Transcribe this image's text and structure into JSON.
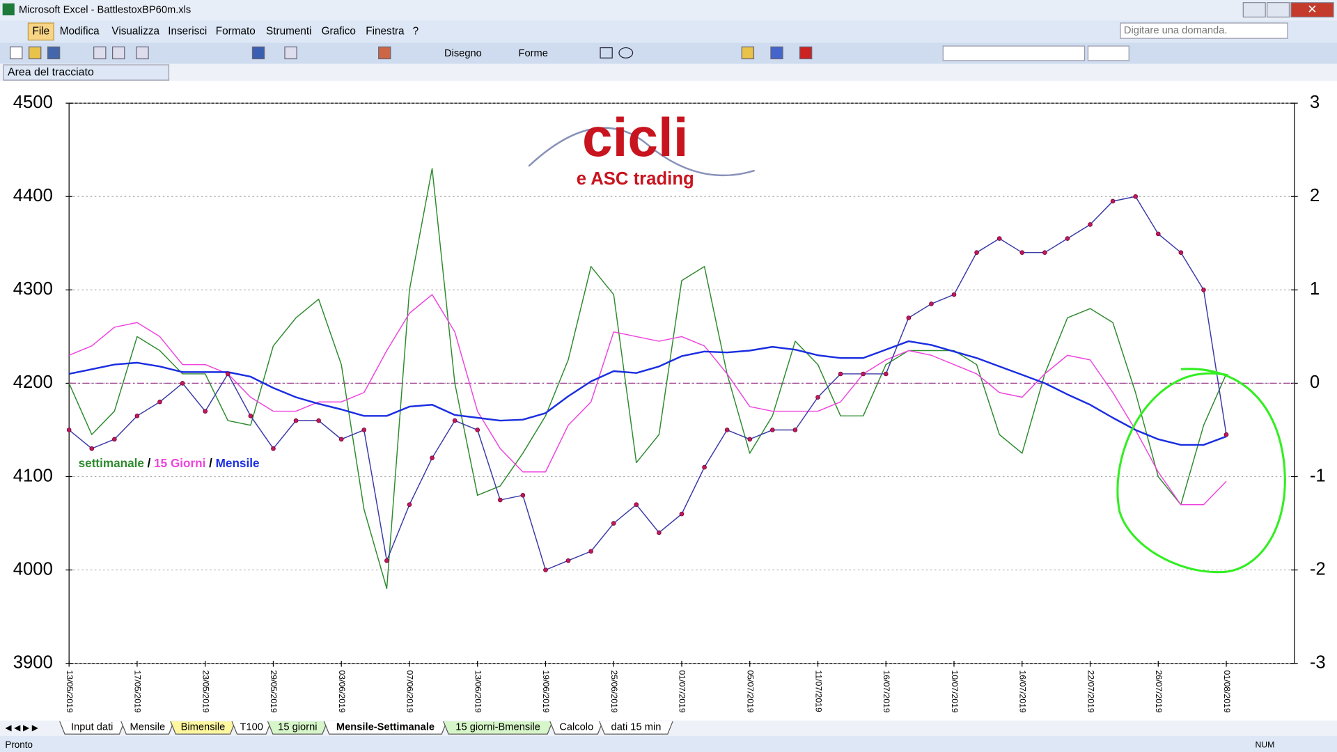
{
  "ui": {
    "window_title": "Microsoft Excel - BattlestoxBP60m.xls",
    "menu": [
      "File",
      "Modifica",
      "Visualizza",
      "Inserisci",
      "Formato",
      "Strumenti",
      "Grafico",
      "Finestra",
      "?"
    ],
    "ask_box": "Digitare una domanda.",
    "toolbar": [
      "Disegno",
      "Forme"
    ],
    "name_box": "Area del tracciato",
    "sheet_tabs": [
      "Input dati",
      "Mensile",
      "Bimensile",
      "T100",
      "15 giorni",
      "Mensile-Settimanale",
      "15 giorni-Bmensile",
      "Calcolo",
      "dati 15 min"
    ],
    "status": "Pronto",
    "status_num": "NUM"
  },
  "logo": {
    "title": "cicli",
    "subtitle": "e ASC trading"
  },
  "chart_data": {
    "type": "line",
    "categories": [
      "13/05/2019",
      null,
      null,
      "17/05/2019",
      null,
      null,
      "23/05/2019",
      null,
      null,
      "29/05/2019",
      null,
      null,
      "03/06/2019",
      null,
      null,
      "07/06/2019",
      null,
      null,
      "13/06/2019",
      null,
      null,
      "19/06/2019",
      null,
      null,
      "25/06/2019",
      null,
      null,
      "01/07/2019",
      null,
      null,
      "05/07/2019",
      null,
      null,
      "11/07/2019",
      null,
      null,
      "16/07/2019",
      null,
      null,
      "10/07/2019",
      null,
      null,
      "16/07/2019",
      null,
      null,
      "22/07/2019",
      null,
      null,
      "26/07/2019",
      null,
      null,
      "01/08/2019",
      null,
      null,
      null
    ],
    "ylim": [
      3900,
      4500
    ],
    "yticks": [
      3900,
      4000,
      4100,
      4200,
      4300,
      4400,
      4500
    ],
    "y2lim": [
      -3,
      3
    ],
    "y2ticks": [
      -3,
      -2,
      -1,
      0,
      1,
      2,
      3
    ],
    "zero_line_color": "#a04090",
    "legend_separator": " / ",
    "price": {
      "color": "#c2185b",
      "line_color": "#3a3aa8",
      "values": [
        4150,
        4130,
        4140,
        4165,
        4180,
        4200,
        4170,
        4210,
        4165,
        4130,
        4160,
        4160,
        4140,
        4150,
        4010,
        4070,
        4120,
        4160,
        4150,
        4075,
        4080,
        4000,
        4010,
        4020,
        4050,
        4070,
        4040,
        4060,
        4110,
        4150,
        4140,
        4150,
        4150,
        4185,
        4210,
        4210,
        4210,
        4270,
        4285,
        4295,
        4340,
        4355,
        4340,
        4340,
        4355,
        4370,
        4395,
        4400,
        4360,
        4340,
        4300,
        4145,
        null,
        null,
        null
      ]
    },
    "series": [
      {
        "name": "settimanale",
        "color": "#2e8b2e",
        "axis": "y2",
        "values": [
          0,
          -0.55,
          -0.3,
          0.5,
          0.35,
          0.1,
          0.1,
          -0.4,
          -0.45,
          0.4,
          0.7,
          0.9,
          0.2,
          -1.35,
          -2.2,
          1.0,
          2.3,
          0,
          -1.2,
          -1.1,
          -0.75,
          -0.35,
          0.25,
          1.25,
          0.95,
          -0.85,
          -0.55,
          1.1,
          1.25,
          0.1,
          -0.75,
          -0.35,
          0.45,
          0.2,
          -0.35,
          -0.35,
          0.2,
          0.35,
          0.35,
          0.35,
          0.2,
          -0.55,
          -0.75,
          0.1,
          0.7,
          0.8,
          0.65,
          -0.1,
          -1.0,
          -1.3,
          -0.45,
          0.1,
          null,
          null,
          null
        ]
      },
      {
        "name": "15 Giorni",
        "color": "#ee44dd",
        "axis": "y2",
        "values": [
          0.3,
          0.4,
          0.6,
          0.65,
          0.5,
          0.2,
          0.2,
          0.1,
          -0.15,
          -0.3,
          -0.3,
          -0.2,
          -0.2,
          -0.1,
          0.35,
          0.75,
          0.95,
          0.55,
          -0.3,
          -0.7,
          -0.95,
          -0.95,
          -0.45,
          -0.2,
          0.55,
          0.5,
          0.45,
          0.5,
          0.4,
          0.1,
          -0.25,
          -0.3,
          -0.3,
          -0.3,
          -0.2,
          0.1,
          0.25,
          0.35,
          0.3,
          0.2,
          0.1,
          -0.1,
          -0.15,
          0.1,
          0.3,
          0.25,
          -0.1,
          -0.5,
          -0.95,
          -1.3,
          -1.3,
          -1.05,
          null,
          null,
          null
        ]
      },
      {
        "name": "Mensile",
        "color": "#1a2ee0",
        "axis": "y2",
        "values": [
          0.1,
          0.15,
          0.2,
          0.22,
          0.18,
          0.12,
          0.12,
          0.12,
          0.07,
          -0.05,
          -0.15,
          -0.22,
          -0.28,
          -0.35,
          -0.35,
          -0.25,
          -0.23,
          -0.34,
          -0.37,
          -0.4,
          -0.39,
          -0.32,
          -0.14,
          0.02,
          0.13,
          0.11,
          0.18,
          0.29,
          0.34,
          0.33,
          0.35,
          0.39,
          0.36,
          0.3,
          0.27,
          0.27,
          0.36,
          0.45,
          0.41,
          0.34,
          0.27,
          0.18,
          0.09,
          0,
          -0.12,
          -0.23,
          -0.37,
          -0.5,
          -0.6,
          -0.66,
          -0.66,
          -0.57,
          null,
          null,
          null
        ]
      }
    ]
  }
}
